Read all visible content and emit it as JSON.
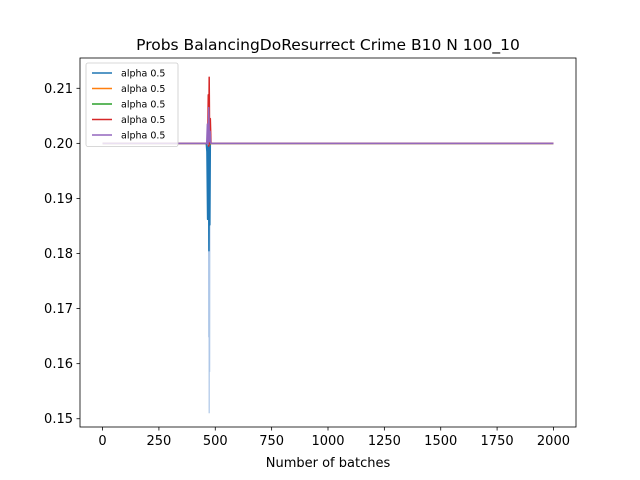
{
  "chart_data": {
    "type": "line",
    "title": "Probs BalancingDoResurrect Crime B10 N 100_10",
    "xlabel": "Number of batches",
    "ylabel": "",
    "xlim": [
      -100,
      2100
    ],
    "ylim": [
      0.1485,
      0.2155
    ],
    "xticks": [
      0,
      250,
      500,
      750,
      1000,
      1250,
      1500,
      1750,
      2000
    ],
    "yticks": [
      0.15,
      0.16,
      0.17,
      0.18,
      0.19,
      0.2,
      0.21
    ],
    "ytick_labels": [
      "0.15",
      "0.16",
      "0.17",
      "0.18",
      "0.19",
      "0.20",
      "0.21"
    ],
    "grid": false,
    "legend": {
      "placement": "top-left"
    },
    "series": [
      {
        "name": "alpha 0.5",
        "color": "#1f77b4",
        "x": [
          0,
          460,
          463,
          466,
          468,
          470,
          472,
          474,
          476,
          478,
          480,
          2000
        ],
        "y": [
          0.2,
          0.2,
          0.1985,
          0.1862,
          0.2003,
          0.1965,
          0.1805,
          0.1995,
          0.1852,
          0.2,
          0.2,
          0.2
        ]
      },
      {
        "name": "alpha 0.5",
        "color": "#ff7f0e",
        "x": [
          0,
          464,
          467,
          470,
          473,
          476,
          480,
          2000
        ],
        "y": [
          0.2,
          0.2,
          0.2004,
          0.1996,
          0.2003,
          0.1998,
          0.2,
          0.2
        ]
      },
      {
        "name": "alpha 0.5",
        "color": "#2ca02c",
        "x": [
          0,
          464,
          467,
          470,
          473,
          476,
          480,
          2000
        ],
        "y": [
          0.2,
          0.2,
          0.2003,
          0.1997,
          0.2002,
          0.1999,
          0.2,
          0.2
        ]
      },
      {
        "name": "alpha 0.5",
        "color": "#d62728",
        "x": [
          0,
          466,
          469,
          471,
          473,
          475,
          478,
          481,
          2000
        ],
        "y": [
          0.2,
          0.2,
          0.2088,
          0.1995,
          0.212,
          0.2,
          0.2045,
          0.2,
          0.2
        ]
      },
      {
        "name": "alpha 0.5",
        "color": "#9467bd",
        "x": [
          0,
          462,
          465,
          468,
          471,
          474,
          477,
          480,
          2000
        ],
        "y": [
          0.2,
          0.2,
          0.2035,
          0.1998,
          0.2065,
          0.2003,
          0.2022,
          0.2,
          0.2
        ]
      }
    ],
    "shadow": {
      "color": "#aec7e8",
      "x": [
        0,
        470,
        471,
        472,
        473,
        474,
        475,
        476,
        477,
        2000
      ],
      "y": [
        0.2,
        0.2,
        0.1648,
        0.1995,
        0.151,
        0.199,
        0.1585,
        0.2,
        0.2,
        0.2
      ]
    }
  }
}
